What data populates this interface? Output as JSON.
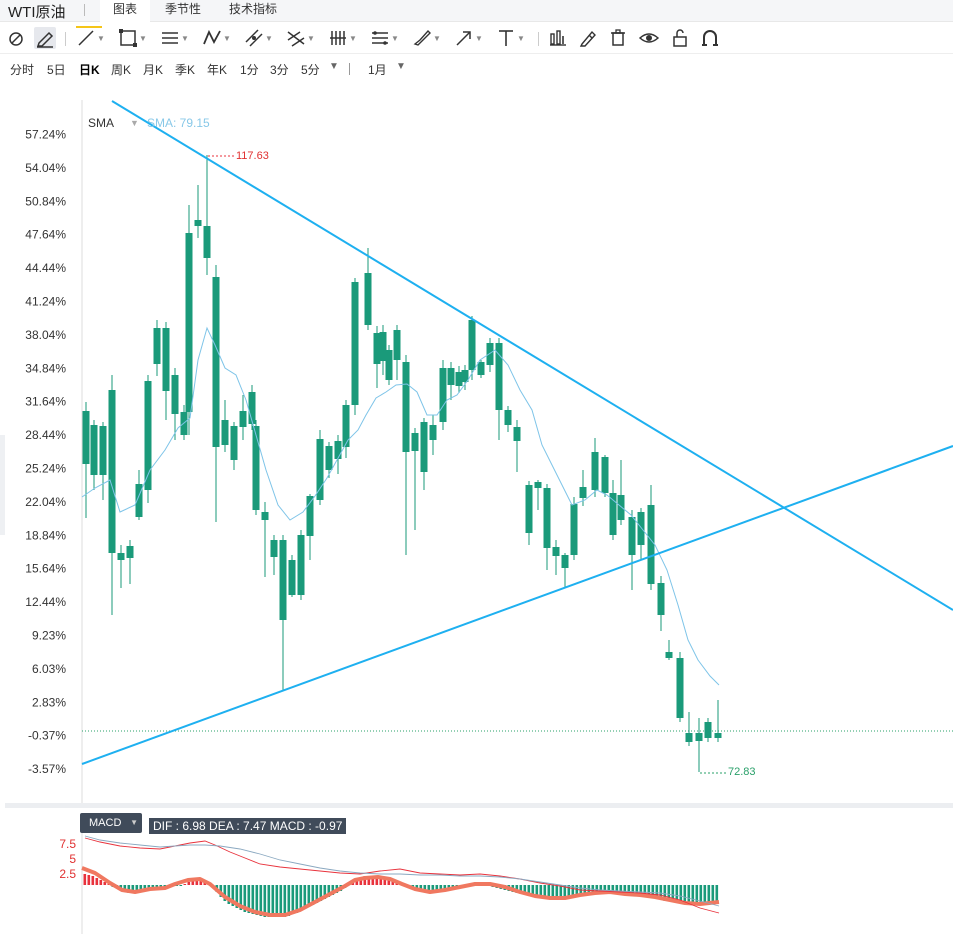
{
  "header": {
    "title": "WTI原油",
    "tabs": [
      {
        "label": "图表",
        "active": true
      },
      {
        "label": "季节性",
        "active": false
      },
      {
        "label": "技术指标",
        "active": false
      }
    ]
  },
  "toolbar": {
    "tools": [
      {
        "icon": "magnet-icon"
      },
      {
        "icon": "pencil-edit-icon",
        "active": true
      },
      {
        "icon": "line-tool-icon"
      },
      {
        "icon": "rectangle-tool-icon"
      },
      {
        "icon": "horizontal-lines-icon"
      },
      {
        "icon": "pattern-tool-icon"
      },
      {
        "icon": "parallel-channel-icon"
      },
      {
        "icon": "fork-tool-icon"
      },
      {
        "icon": "gann-fan-icon"
      },
      {
        "icon": "fibonacci-icon"
      },
      {
        "icon": "brush-tool-icon"
      },
      {
        "icon": "arrow-tool-icon"
      },
      {
        "icon": "text-tool-icon"
      },
      {
        "icon": "bar-chart-icon"
      },
      {
        "icon": "pen-icon"
      },
      {
        "icon": "trash-icon"
      },
      {
        "icon": "eye-icon"
      },
      {
        "icon": "unlock-icon"
      },
      {
        "icon": "magnet-u-icon"
      }
    ]
  },
  "periods": {
    "items": [
      "分时",
      "5日",
      "日K",
      "周K",
      "月K",
      "季K",
      "年K",
      "1分",
      "3分",
      "5分"
    ],
    "active": "日K",
    "range": "1月",
    "more_symbol": "▼"
  },
  "price_axis": {
    "labels": [
      "57.24%",
      "54.04%",
      "50.84%",
      "47.64%",
      "44.44%",
      "41.24%",
      "38.04%",
      "34.84%",
      "31.64%",
      "28.44%",
      "25.24%",
      "22.04%",
      "18.84%",
      "15.64%",
      "12.44%",
      "9.23%",
      "6.03%",
      "2.83%",
      "-0.37%",
      "-3.57%"
    ]
  },
  "indicator": {
    "name": "SMA",
    "value_text": "SMA: 79.15",
    "caret": "▼"
  },
  "annotations": {
    "max_text": "117.63",
    "min_text": "72.83"
  },
  "macd": {
    "label": "MACD",
    "caret": "▼",
    "values_text": "DIF : 6.98   DEA : 7.47   MACD : -0.97",
    "axis_labels": [
      "7.5",
      "5",
      "2.5"
    ]
  },
  "colors": {
    "up": "#e8323c",
    "down": "#1a9a7a",
    "trend": "#1eb0f0",
    "sma": "#7ec4e8",
    "macd_line": "#f07860"
  }
}
